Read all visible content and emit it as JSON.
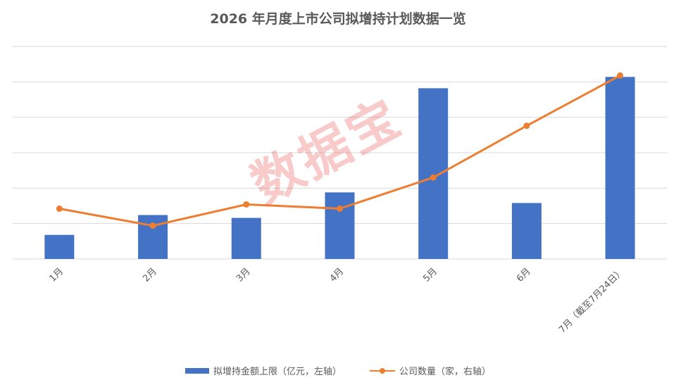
{
  "chart_data": {
    "type": "bar",
    "title": "2026 年月度上市公司拟增持计划数据一览",
    "categories": [
      "1月",
      "2月",
      "3月",
      "4月",
      "5月",
      "6月",
      "7月（截至7月24日）"
    ],
    "series": [
      {
        "name": "拟增持金额上限（亿元，左轴）",
        "type": "bar",
        "axis": "left",
        "values": [
          34,
          62,
          58,
          94,
          241,
          79,
          257
        ]
      },
      {
        "name": "公司数量（家，右轴）",
        "type": "line",
        "axis": "right",
        "values": [
          71,
          47,
          77,
          71,
          115,
          188,
          259
        ]
      }
    ],
    "left_ylim": [
      0,
      300
    ],
    "right_ylim": [
      0,
      300
    ],
    "grid": true,
    "legend": "bottom",
    "colors": {
      "bar": "#4472C4",
      "line": "#ED7D31",
      "grid": "#D9D9D9",
      "text": "#595959"
    }
  },
  "watermark": "数据宝"
}
